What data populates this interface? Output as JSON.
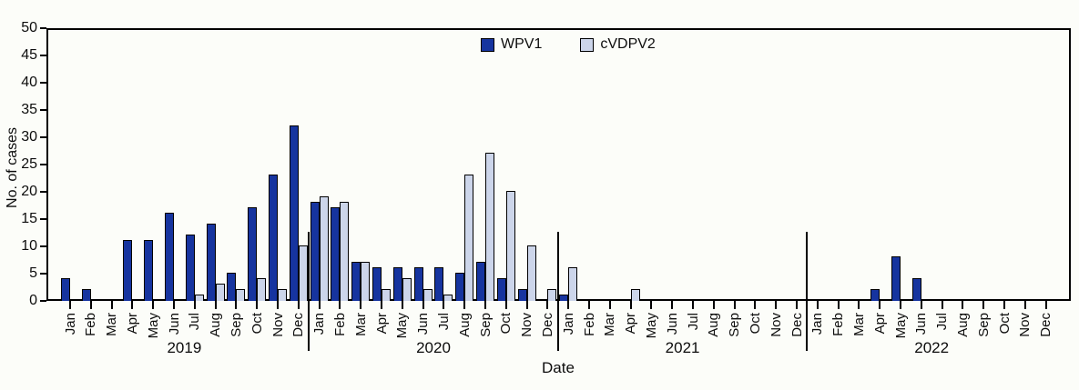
{
  "figure": {
    "background": "#fcfdf9",
    "frame_color": "#000000"
  },
  "chart_data": {
    "type": "bar",
    "title": "",
    "ylabel": "No. of cases",
    "xlabel": "Date",
    "ylim": [
      0,
      50
    ],
    "ytick_step": 5,
    "grid": false,
    "legend_position": "top-center",
    "month_labels": [
      "Jan",
      "Feb",
      "Mar",
      "Apr",
      "May",
      "Jun",
      "Jul",
      "Aug",
      "Sep",
      "Oct",
      "Nov",
      "Dec"
    ],
    "year_labels": [
      "2019",
      "2020",
      "2021",
      "2022"
    ],
    "series": [
      {
        "name": "WPV1",
        "color": "#16349f",
        "values": [
          4,
          2,
          0,
          11,
          11,
          16,
          12,
          14,
          5,
          17,
          23,
          32,
          18,
          17,
          7,
          6,
          6,
          6,
          6,
          5,
          7,
          4,
          2,
          0,
          1,
          0,
          0,
          0,
          0,
          0,
          0,
          0,
          0,
          0,
          0,
          0,
          0,
          0,
          0,
          2,
          8,
          4,
          0,
          0,
          0,
          0,
          0,
          0
        ]
      },
      {
        "name": "cVDPV2",
        "color": "#ccd5ea",
        "values": [
          0,
          0,
          0,
          0,
          0,
          0,
          1,
          3,
          2,
          4,
          2,
          10,
          19,
          18,
          7,
          2,
          4,
          2,
          1,
          23,
          27,
          20,
          10,
          2,
          6,
          0,
          0,
          2,
          0,
          0,
          0,
          0,
          0,
          0,
          0,
          0,
          0,
          0,
          0,
          0,
          0,
          0,
          0,
          0,
          0,
          0,
          0,
          0
        ]
      }
    ]
  }
}
